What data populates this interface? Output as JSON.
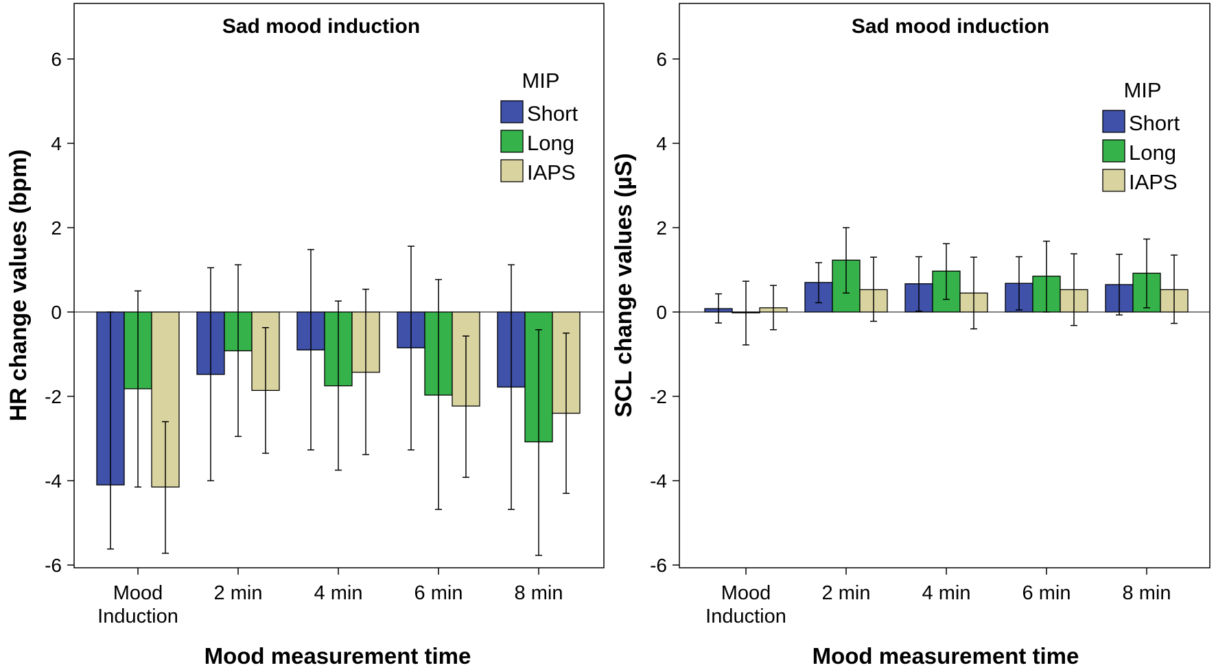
{
  "colors": {
    "Short": "#3f51a8",
    "Long": "#35b34a",
    "IAPS": "#d9d3a0"
  },
  "chart_data": [
    {
      "type": "bar",
      "title": "Sad mood induction",
      "ylabel": "HR change values (bpm)",
      "xlabel": "Mood measurement time",
      "ylim": [
        -6,
        7.3
      ],
      "yticks": [
        -6,
        -4,
        -2,
        0,
        2,
        4,
        6
      ],
      "categories": [
        [
          "Mood",
          "Induction"
        ],
        [
          "2 min"
        ],
        [
          "4 min"
        ],
        [
          "6 min"
        ],
        [
          "8 min"
        ]
      ],
      "legend": {
        "title": "MIP",
        "position": "top-right"
      },
      "series": [
        {
          "name": "Short",
          "values": [
            -4.1,
            -1.48,
            -0.9,
            -0.85,
            -1.78
          ],
          "err_low": [
            -5.62,
            -4.0,
            -3.27,
            -3.27,
            -4.68
          ],
          "err_high": [
            0,
            1.05,
            1.48,
            1.56,
            1.12
          ]
        },
        {
          "name": "Long",
          "values": [
            -1.82,
            -0.92,
            -1.75,
            -1.97,
            -3.08
          ],
          "err_low": [
            -4.15,
            -2.95,
            -3.75,
            -4.68,
            -5.77
          ],
          "err_high": [
            0.5,
            1.12,
            0.26,
            0.77,
            -0.42
          ]
        },
        {
          "name": "IAPS",
          "values": [
            -4.15,
            -1.86,
            -1.43,
            -2.23,
            -2.4
          ],
          "err_low": [
            -5.72,
            -3.35,
            -3.38,
            -3.92,
            -4.3
          ],
          "err_high": [
            -2.6,
            -0.37,
            0.54,
            -0.57,
            -0.5
          ]
        }
      ]
    },
    {
      "type": "bar",
      "title": "Sad mood induction",
      "ylabel": "SCL change values (µS)",
      "xlabel": "Mood measurement time",
      "ylim": [
        -6,
        7.3
      ],
      "yticks": [
        -6,
        -4,
        -2,
        0,
        2,
        4,
        6
      ],
      "categories": [
        [
          "Mood",
          "Induction"
        ],
        [
          "2 min"
        ],
        [
          "4 min"
        ],
        [
          "6 min"
        ],
        [
          "8 min"
        ]
      ],
      "legend": {
        "title": "MIP",
        "position": "top-right"
      },
      "series": [
        {
          "name": "Short",
          "values": [
            0.08,
            0.7,
            0.67,
            0.68,
            0.65
          ],
          "err_low": [
            -0.26,
            0.22,
            0.02,
            0.05,
            -0.07
          ],
          "err_high": [
            0.43,
            1.17,
            1.31,
            1.31,
            1.37
          ]
        },
        {
          "name": "Long",
          "values": [
            -0.02,
            1.23,
            0.97,
            0.85,
            0.92
          ],
          "err_low": [
            -0.78,
            0.45,
            0.3,
            0.0,
            0.1
          ],
          "err_high": [
            0.73,
            2.0,
            1.62,
            1.68,
            1.73
          ]
        },
        {
          "name": "IAPS",
          "values": [
            0.1,
            0.53,
            0.45,
            0.53,
            0.53
          ],
          "err_low": [
            -0.42,
            -0.22,
            -0.4,
            -0.32,
            -0.27
          ],
          "err_high": [
            0.63,
            1.3,
            1.3,
            1.38,
            1.35
          ]
        }
      ]
    }
  ]
}
